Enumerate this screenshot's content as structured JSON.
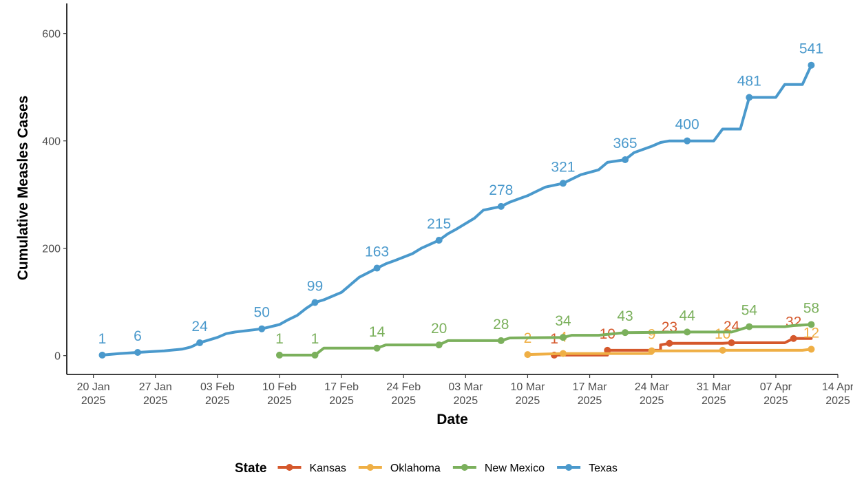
{
  "chart_data": {
    "type": "line",
    "xlabel": "Date",
    "ylabel": "Cumulative Measles Cases",
    "xlim": [
      "2025-01-17",
      "2025-04-14"
    ],
    "ylim": [
      -35,
      656
    ],
    "y_ticks": [
      0,
      200,
      400,
      600
    ],
    "x_ticks": [
      {
        "date": "2025-01-20",
        "line1": "20 Jan",
        "line2": "2025"
      },
      {
        "date": "2025-01-27",
        "line1": "27 Jan",
        "line2": "2025"
      },
      {
        "date": "2025-02-03",
        "line1": "03 Feb",
        "line2": "2025"
      },
      {
        "date": "2025-02-10",
        "line1": "10 Feb",
        "line2": "2025"
      },
      {
        "date": "2025-02-17",
        "line1": "17 Feb",
        "line2": "2025"
      },
      {
        "date": "2025-02-24",
        "line1": "24 Feb",
        "line2": "2025"
      },
      {
        "date": "2025-03-03",
        "line1": "03 Mar",
        "line2": "2025"
      },
      {
        "date": "2025-03-10",
        "line1": "10 Mar",
        "line2": "2025"
      },
      {
        "date": "2025-03-17",
        "line1": "17 Mar",
        "line2": "2025"
      },
      {
        "date": "2025-03-24",
        "line1": "24 Mar",
        "line2": "2025"
      },
      {
        "date": "2025-03-31",
        "line1": "31 Mar",
        "line2": "2025"
      },
      {
        "date": "2025-04-07",
        "line1": "07 Apr",
        "line2": "2025"
      },
      {
        "date": "2025-04-14",
        "line1": "14 Apr",
        "line2": "2025"
      }
    ],
    "grid": false,
    "legend": {
      "title": "State",
      "position": "bottom"
    },
    "series": [
      {
        "name": "Kansas",
        "color": "#d5582c",
        "points": [
          {
            "x": "2025-03-13",
            "y": 1
          },
          {
            "x": "2025-03-19",
            "y": 1
          },
          {
            "x": "2025-03-19",
            "y": 10
          },
          {
            "x": "2025-03-20",
            "y": 10
          },
          {
            "x": "2025-03-25",
            "y": 10
          },
          {
            "x": "2025-03-25",
            "y": 20
          },
          {
            "x": "2025-03-26",
            "y": 23
          },
          {
            "x": "2025-04-01",
            "y": 23
          },
          {
            "x": "2025-04-02",
            "y": 24
          },
          {
            "x": "2025-04-08",
            "y": 24
          },
          {
            "x": "2025-04-09",
            "y": 32
          },
          {
            "x": "2025-04-11",
            "y": 32
          }
        ],
        "labels": [
          {
            "x": "2025-03-13",
            "y": 1,
            "text": "1"
          },
          {
            "x": "2025-03-19",
            "y": 10,
            "text": "10"
          },
          {
            "x": "2025-03-26",
            "y": 23,
            "text": "23"
          },
          {
            "x": "2025-04-02",
            "y": 24,
            "text": "24"
          },
          {
            "x": "2025-04-09",
            "y": 32,
            "text": "32"
          }
        ]
      },
      {
        "name": "Oklahoma",
        "color": "#efaf45",
        "points": [
          {
            "x": "2025-03-10",
            "y": 2
          },
          {
            "x": "2025-03-14",
            "y": 4
          },
          {
            "x": "2025-03-24",
            "y": 4
          },
          {
            "x": "2025-03-24",
            "y": 9
          },
          {
            "x": "2025-04-01",
            "y": 9
          },
          {
            "x": "2025-04-01",
            "y": 10
          },
          {
            "x": "2025-04-10",
            "y": 10
          },
          {
            "x": "2025-04-11",
            "y": 12
          }
        ],
        "labels": [
          {
            "x": "2025-03-10",
            "y": 2,
            "text": "2"
          },
          {
            "x": "2025-03-14",
            "y": 4,
            "text": "4"
          },
          {
            "x": "2025-03-24",
            "y": 9,
            "text": "9"
          },
          {
            "x": "2025-04-01",
            "y": 10,
            "text": "10"
          },
          {
            "x": "2025-04-11",
            "y": 12,
            "text": "12"
          }
        ]
      },
      {
        "name": "New Mexico",
        "color": "#7bb05c",
        "points": [
          {
            "x": "2025-02-10",
            "y": 1
          },
          {
            "x": "2025-02-14",
            "y": 1
          },
          {
            "x": "2025-02-15",
            "y": 14
          },
          {
            "x": "2025-02-21",
            "y": 14
          },
          {
            "x": "2025-02-22",
            "y": 20
          },
          {
            "x": "2025-02-28",
            "y": 20
          },
          {
            "x": "2025-03-01",
            "y": 28
          },
          {
            "x": "2025-03-07",
            "y": 28
          },
          {
            "x": "2025-03-08",
            "y": 33
          },
          {
            "x": "2025-03-14",
            "y": 34
          },
          {
            "x": "2025-03-15",
            "y": 38
          },
          {
            "x": "2025-03-18",
            "y": 38
          },
          {
            "x": "2025-03-21",
            "y": 43
          },
          {
            "x": "2025-03-28",
            "y": 44
          },
          {
            "x": "2025-04-02",
            "y": 44
          },
          {
            "x": "2025-04-04",
            "y": 54
          },
          {
            "x": "2025-04-08",
            "y": 54
          },
          {
            "x": "2025-04-09",
            "y": 56
          },
          {
            "x": "2025-04-11",
            "y": 58
          }
        ],
        "labels": [
          {
            "x": "2025-02-10",
            "y": 1,
            "text": "1"
          },
          {
            "x": "2025-02-14",
            "y": 1,
            "text": "1"
          },
          {
            "x": "2025-02-21",
            "y": 14,
            "text": "14"
          },
          {
            "x": "2025-02-28",
            "y": 20,
            "text": "20"
          },
          {
            "x": "2025-03-07",
            "y": 28,
            "text": "28"
          },
          {
            "x": "2025-03-14",
            "y": 34,
            "text": "34"
          },
          {
            "x": "2025-03-21",
            "y": 43,
            "text": "43"
          },
          {
            "x": "2025-03-28",
            "y": 44,
            "text": "44"
          },
          {
            "x": "2025-04-04",
            "y": 54,
            "text": "54"
          },
          {
            "x": "2025-04-11",
            "y": 58,
            "text": "58"
          }
        ]
      },
      {
        "name": "Texas",
        "color": "#4a99cc",
        "points": [
          {
            "x": "2025-01-21",
            "y": 1
          },
          {
            "x": "2025-01-23",
            "y": 4
          },
          {
            "x": "2025-01-25",
            "y": 6
          },
          {
            "x": "2025-01-26",
            "y": 7
          },
          {
            "x": "2025-01-28",
            "y": 9
          },
          {
            "x": "2025-01-30",
            "y": 12
          },
          {
            "x": "2025-01-31",
            "y": 16
          },
          {
            "x": "2025-02-01",
            "y": 24
          },
          {
            "x": "2025-02-02",
            "y": 29
          },
          {
            "x": "2025-02-03",
            "y": 34
          },
          {
            "x": "2025-02-04",
            "y": 41
          },
          {
            "x": "2025-02-05",
            "y": 44
          },
          {
            "x": "2025-02-06",
            "y": 46
          },
          {
            "x": "2025-02-07",
            "y": 48
          },
          {
            "x": "2025-02-08",
            "y": 50
          },
          {
            "x": "2025-02-10",
            "y": 58
          },
          {
            "x": "2025-02-11",
            "y": 67
          },
          {
            "x": "2025-02-12",
            "y": 75
          },
          {
            "x": "2025-02-13",
            "y": 88
          },
          {
            "x": "2025-02-14",
            "y": 99
          },
          {
            "x": "2025-02-15",
            "y": 104
          },
          {
            "x": "2025-02-17",
            "y": 118
          },
          {
            "x": "2025-02-19",
            "y": 146
          },
          {
            "x": "2025-02-21",
            "y": 163
          },
          {
            "x": "2025-02-22",
            "y": 171
          },
          {
            "x": "2025-02-23",
            "y": 177
          },
          {
            "x": "2025-02-25",
            "y": 190
          },
          {
            "x": "2025-02-26",
            "y": 200
          },
          {
            "x": "2025-02-28",
            "y": 215
          },
          {
            "x": "2025-03-01",
            "y": 227
          },
          {
            "x": "2025-03-02",
            "y": 236
          },
          {
            "x": "2025-03-04",
            "y": 256
          },
          {
            "x": "2025-03-05",
            "y": 271
          },
          {
            "x": "2025-03-07",
            "y": 278
          },
          {
            "x": "2025-03-08",
            "y": 286
          },
          {
            "x": "2025-03-09",
            "y": 292
          },
          {
            "x": "2025-03-10",
            "y": 298
          },
          {
            "x": "2025-03-11",
            "y": 306
          },
          {
            "x": "2025-03-12",
            "y": 314
          },
          {
            "x": "2025-03-14",
            "y": 321
          },
          {
            "x": "2025-03-16",
            "y": 337
          },
          {
            "x": "2025-03-18",
            "y": 346
          },
          {
            "x": "2025-03-19",
            "y": 360
          },
          {
            "x": "2025-03-21",
            "y": 365
          },
          {
            "x": "2025-03-22",
            "y": 378
          },
          {
            "x": "2025-03-24",
            "y": 390
          },
          {
            "x": "2025-03-25",
            "y": 397
          },
          {
            "x": "2025-03-26",
            "y": 400
          },
          {
            "x": "2025-03-28",
            "y": 400
          },
          {
            "x": "2025-03-31",
            "y": 400
          },
          {
            "x": "2025-04-01",
            "y": 422
          },
          {
            "x": "2025-04-03",
            "y": 422
          },
          {
            "x": "2025-04-04",
            "y": 481
          },
          {
            "x": "2025-04-07",
            "y": 481
          },
          {
            "x": "2025-04-08",
            "y": 505
          },
          {
            "x": "2025-04-10",
            "y": 505
          },
          {
            "x": "2025-04-11",
            "y": 541
          }
        ],
        "labels": [
          {
            "x": "2025-01-21",
            "y": 1,
            "text": "1"
          },
          {
            "x": "2025-01-25",
            "y": 6,
            "text": "6"
          },
          {
            "x": "2025-02-01",
            "y": 24,
            "text": "24"
          },
          {
            "x": "2025-02-08",
            "y": 50,
            "text": "50"
          },
          {
            "x": "2025-02-14",
            "y": 99,
            "text": "99"
          },
          {
            "x": "2025-02-21",
            "y": 163,
            "text": "163"
          },
          {
            "x": "2025-02-28",
            "y": 215,
            "text": "215"
          },
          {
            "x": "2025-03-07",
            "y": 278,
            "text": "278"
          },
          {
            "x": "2025-03-14",
            "y": 321,
            "text": "321"
          },
          {
            "x": "2025-03-21",
            "y": 365,
            "text": "365"
          },
          {
            "x": "2025-03-28",
            "y": 400,
            "text": "400"
          },
          {
            "x": "2025-04-04",
            "y": 481,
            "text": "481"
          },
          {
            "x": "2025-04-11",
            "y": 541,
            "text": "541"
          }
        ]
      }
    ]
  }
}
